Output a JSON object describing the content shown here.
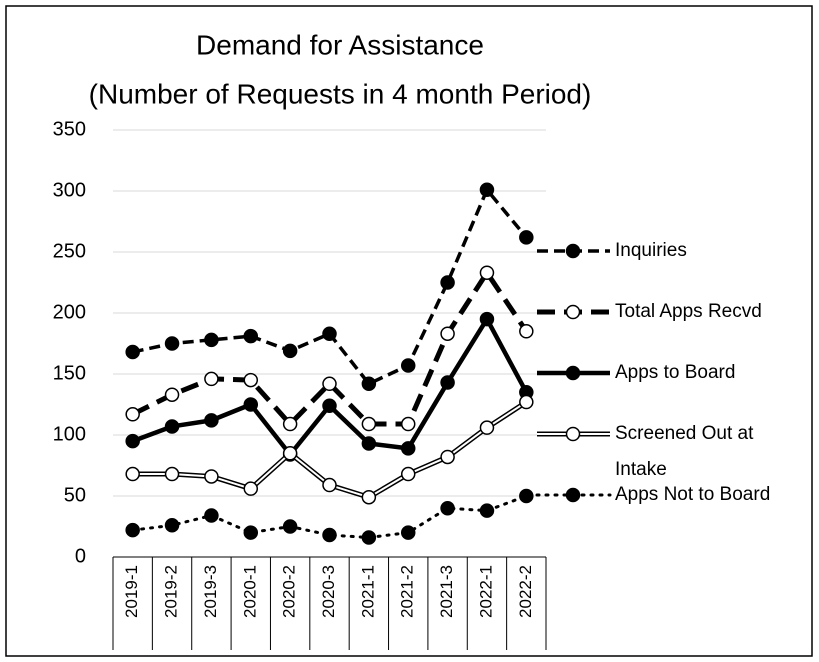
{
  "chart_data": {
    "type": "line",
    "title": "Demand for Assistance",
    "subtitle": "(Number of Requests in 4 month Period)",
    "categories": [
      "2019-1",
      "2019-2",
      "2019-3",
      "2020-1",
      "2020-2",
      "2020-3",
      "2021-1",
      "2021-2",
      "2021-3",
      "2022-1",
      "2022-2"
    ],
    "series": [
      {
        "name": "Inquiries",
        "color": "#000000",
        "style": "dashed",
        "marker": "filled",
        "values": [
          168,
          175,
          178,
          181,
          169,
          183,
          142,
          157,
          225,
          301,
          262
        ]
      },
      {
        "name": "Total Apps Recvd",
        "color": "#000000",
        "style": "long-dashed",
        "marker": "open",
        "values": [
          117,
          133,
          146,
          145,
          109,
          142,
          109,
          109,
          183,
          233,
          185
        ]
      },
      {
        "name": "Apps to Board",
        "color": "#000000",
        "style": "solid",
        "marker": "filled",
        "values": [
          95,
          107,
          112,
          125,
          84,
          124,
          93,
          89,
          143,
          195,
          135
        ]
      },
      {
        "name": "Screened Out at Intake",
        "color": "#000000",
        "style": "double",
        "marker": "open",
        "values": [
          68,
          68,
          66,
          56,
          85,
          59,
          49,
          68,
          82,
          106,
          127
        ]
      },
      {
        "name": "Apps Not to Board",
        "color": "#000000",
        "style": "dotted",
        "marker": "filled",
        "values": [
          22,
          26,
          34,
          20,
          25,
          18,
          16,
          20,
          40,
          38,
          50
        ]
      }
    ],
    "ylim": [
      0,
      350
    ],
    "yticks": [
      0,
      50,
      100,
      150,
      200,
      250,
      300,
      350
    ],
    "grid": true,
    "legend": "right"
  }
}
